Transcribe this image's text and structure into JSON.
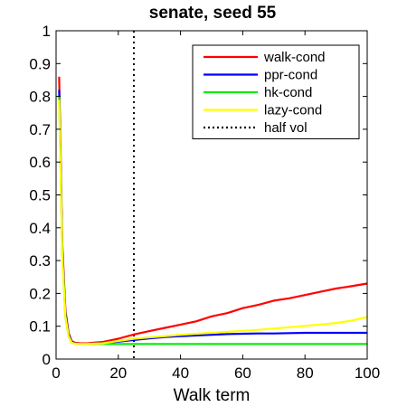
{
  "chart_data": {
    "type": "line",
    "title": "senate, seed 55",
    "xlabel": "Walk term",
    "ylabel": "",
    "xlim": [
      0,
      100
    ],
    "ylim": [
      0,
      1
    ],
    "xticks": [
      "0",
      "20",
      "40",
      "60",
      "80",
      "100"
    ],
    "yticks": [
      "0",
      "0.1",
      "0.2",
      "0.3",
      "0.4",
      "0.5",
      "0.6",
      "0.7",
      "0.8",
      "0.9",
      "1"
    ],
    "grid": false,
    "legend_position": "top-right",
    "series": [
      {
        "name": "walk-cond",
        "color": "#ff0000",
        "x": [
          1,
          2,
          3,
          4,
          5,
          6,
          8,
          10,
          12,
          15,
          20,
          25,
          30,
          35,
          40,
          45,
          50,
          55,
          60,
          65,
          70,
          75,
          80,
          85,
          90,
          95,
          100
        ],
        "y": [
          0.86,
          0.35,
          0.15,
          0.08,
          0.055,
          0.05,
          0.048,
          0.048,
          0.05,
          0.052,
          0.062,
          0.075,
          0.085,
          0.095,
          0.105,
          0.115,
          0.13,
          0.14,
          0.155,
          0.165,
          0.178,
          0.185,
          0.195,
          0.205,
          0.215,
          0.222,
          0.23
        ]
      },
      {
        "name": "ppr-cond",
        "color": "#0000ff",
        "x": [
          1,
          2,
          3,
          4,
          5,
          6,
          8,
          10,
          12,
          15,
          20,
          25,
          30,
          35,
          40,
          45,
          50,
          55,
          60,
          65,
          70,
          75,
          80,
          85,
          90,
          95,
          100
        ],
        "y": [
          0.82,
          0.33,
          0.14,
          0.075,
          0.052,
          0.048,
          0.046,
          0.046,
          0.047,
          0.048,
          0.053,
          0.058,
          0.063,
          0.067,
          0.07,
          0.072,
          0.074,
          0.076,
          0.077,
          0.078,
          0.078,
          0.079,
          0.08,
          0.08,
          0.08,
          0.08,
          0.08
        ]
      },
      {
        "name": "hk-cond",
        "color": "#00ee00",
        "x": [
          1,
          2,
          3,
          4,
          5,
          6,
          8,
          10,
          12,
          15,
          20,
          25,
          30,
          35,
          40,
          45,
          50,
          55,
          60,
          65,
          70,
          75,
          80,
          85,
          90,
          95,
          100
        ],
        "y": [
          0.8,
          0.32,
          0.13,
          0.07,
          0.05,
          0.047,
          0.046,
          0.046,
          0.046,
          0.046,
          0.046,
          0.046,
          0.046,
          0.046,
          0.046,
          0.046,
          0.046,
          0.046,
          0.046,
          0.046,
          0.046,
          0.046,
          0.046,
          0.046,
          0.046,
          0.046,
          0.046
        ]
      },
      {
        "name": "lazy-cond",
        "color": "#ffff00",
        "x": [
          1,
          2,
          3,
          4,
          5,
          6,
          8,
          10,
          12,
          15,
          20,
          25,
          30,
          35,
          40,
          45,
          50,
          55,
          60,
          65,
          70,
          75,
          80,
          85,
          90,
          95,
          100
        ],
        "y": [
          0.79,
          0.31,
          0.13,
          0.07,
          0.05,
          0.047,
          0.046,
          0.046,
          0.047,
          0.048,
          0.055,
          0.062,
          0.066,
          0.07,
          0.074,
          0.077,
          0.08,
          0.083,
          0.086,
          0.089,
          0.093,
          0.097,
          0.101,
          0.105,
          0.11,
          0.117,
          0.128
        ]
      }
    ],
    "reference_lines": [
      {
        "name": "half vol",
        "orientation": "vertical",
        "x": 25,
        "style": "dotted",
        "color": "#000000"
      }
    ]
  }
}
